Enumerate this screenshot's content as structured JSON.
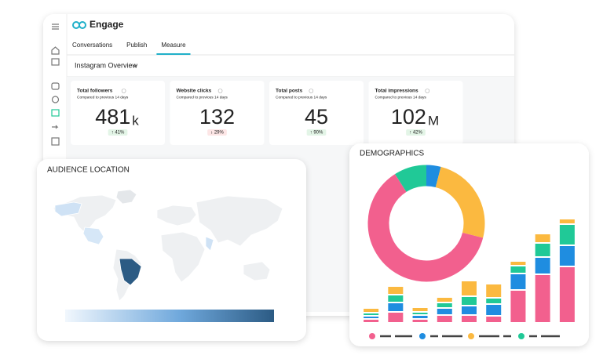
{
  "app": {
    "title": "Engage",
    "tabs": [
      "Conversations",
      "Publish",
      "Measure"
    ],
    "active_tab": 2,
    "view_selector": "Instagram Overview",
    "kpis": [
      {
        "label": "Total followers",
        "subtitle": "Compared to previous 14 days",
        "value": 481,
        "unit": "k",
        "change": "↑ 41%",
        "trend": "up"
      },
      {
        "label": "Website clicks",
        "subtitle": "Compared to previous 14 days",
        "value": 132,
        "unit": null,
        "change": "↓ 29%",
        "trend": "down"
      },
      {
        "label": "Total posts",
        "subtitle": "Compared to previous 14 days",
        "value": 45,
        "unit": null,
        "change": "↑ 90%",
        "trend": "up"
      },
      {
        "label": "Total impressions",
        "subtitle": "Compared to previous 14 days",
        "value": 102,
        "unit": "M",
        "change": "↑ 42%",
        "trend": "up"
      }
    ]
  },
  "audience_location": {
    "title": "AUDIENCE LOCATION"
  },
  "chart_data": [
    {
      "type": "donut",
      "title": "DEMOGRAPHICS",
      "values": [
        4,
        25,
        62,
        9
      ],
      "colors": [
        "#1f8de0",
        "#fbb940",
        "#f2608e",
        "#20c997"
      ]
    },
    {
      "type": "stacked_bar",
      "categories": [
        null,
        null,
        null,
        null,
        null,
        null,
        null,
        null,
        null
      ],
      "ylim": [
        0,
        140
      ],
      "series": [
        {
          "color": "#f2608e",
          "values": [
            5,
            14,
            5,
            10,
            10,
            9,
            42,
            62,
            72
          ]
        },
        {
          "color": "#1f8de0",
          "values": [
            4,
            12,
            5,
            9,
            12,
            15,
            21,
            22,
            27
          ]
        },
        {
          "color": "#20c997",
          "values": [
            4,
            10,
            4,
            7,
            12,
            8,
            10,
            18,
            27
          ]
        },
        {
          "color": "#fbb940",
          "values": [
            6,
            11,
            6,
            7,
            20,
            18,
            6,
            12,
            7
          ]
        }
      ]
    }
  ]
}
